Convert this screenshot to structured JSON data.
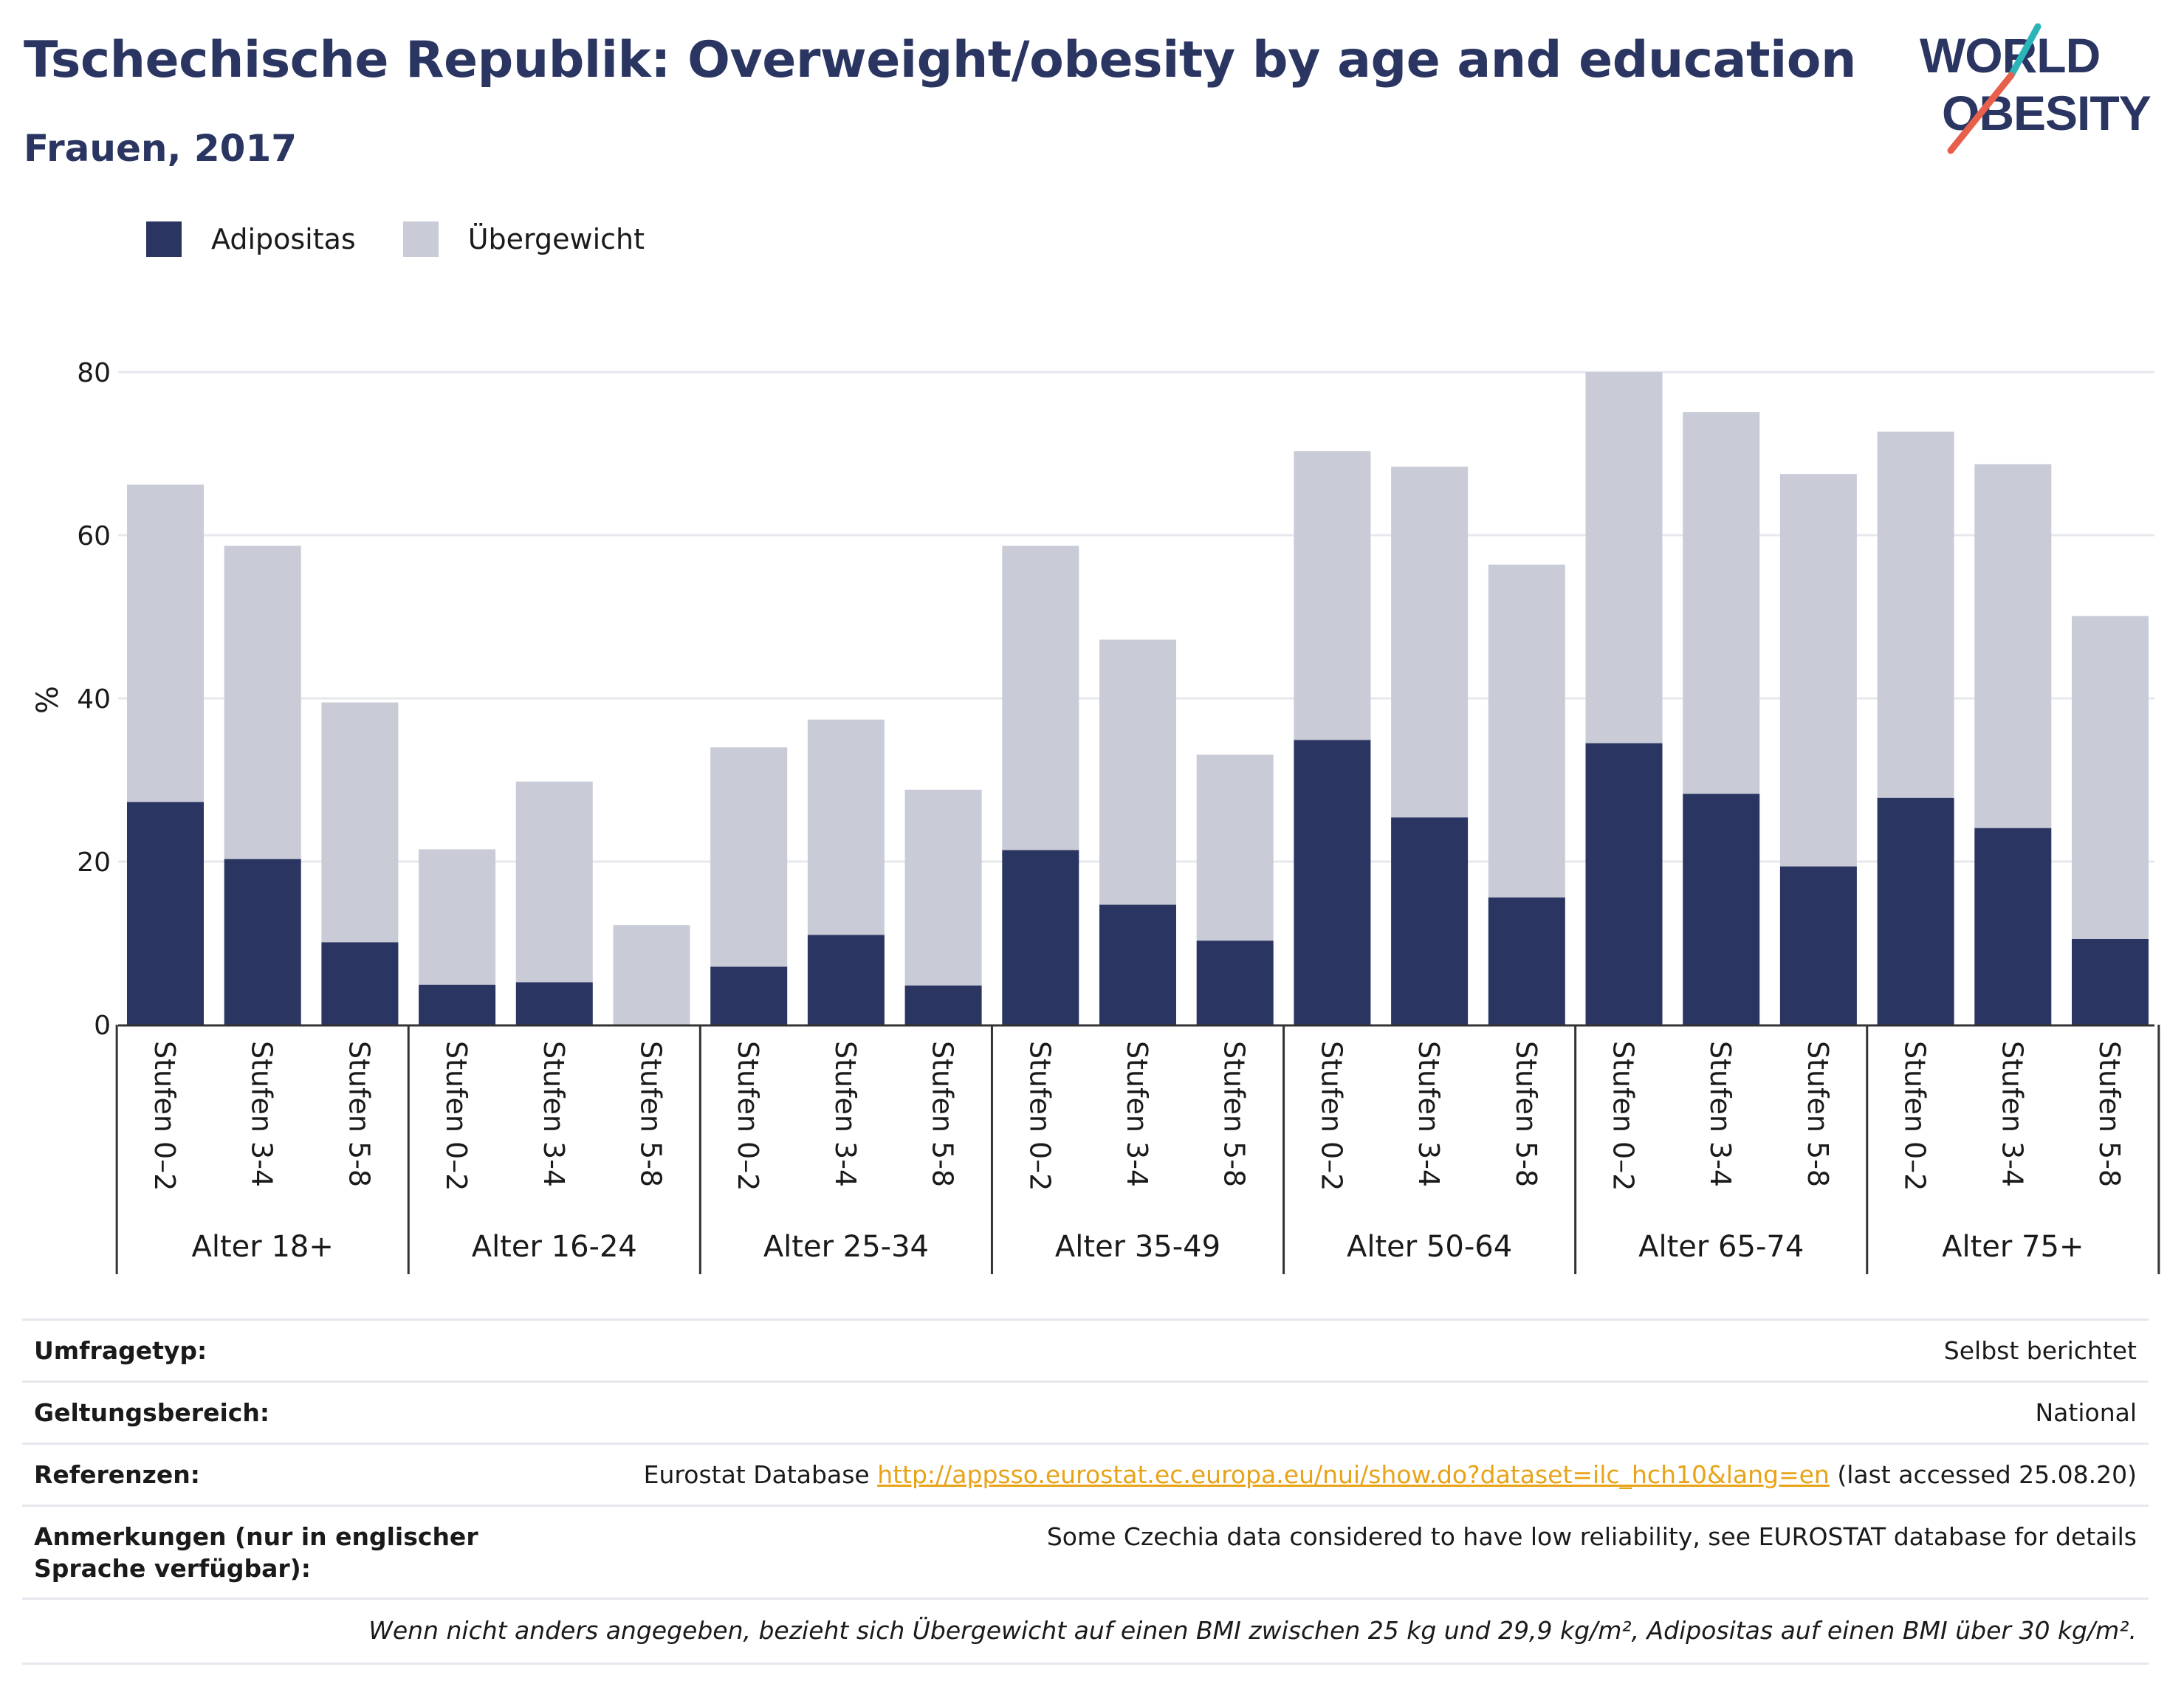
{
  "header": {
    "title": "Tschechische Republik: Overweight/obesity by age and education",
    "subtitle": "Frauen, 2017"
  },
  "logo": {
    "line1": "WORLD",
    "line2": "OBESITY"
  },
  "colors": {
    "obesity": "#2a3561",
    "overweight": "#c9cbd7",
    "title": "#2a3561",
    "link": "#e8a317",
    "logo_teal": "#2bb5b8",
    "logo_red": "#e8604c"
  },
  "legend": [
    {
      "label": "Adipositas",
      "color": "#2a3561"
    },
    {
      "label": "Übergewicht",
      "color": "#c9cbd7"
    }
  ],
  "chart_data": {
    "type": "bar",
    "stacked": true,
    "ylabel": "%",
    "ylim": [
      0,
      80
    ],
    "yticks": [
      0,
      20,
      40,
      60,
      80
    ],
    "grid": true,
    "legend_position": "top-left",
    "groups": [
      {
        "label": "Alter 18+",
        "categories": [
          "Stufen 0–2",
          "Stufen 3-4",
          "Stufen 5-8"
        ]
      },
      {
        "label": "Alter 16-24",
        "categories": [
          "Stufen 0–2",
          "Stufen 3-4",
          "Stufen 5-8"
        ]
      },
      {
        "label": "Alter 25-34",
        "categories": [
          "Stufen 0–2",
          "Stufen 3-4",
          "Stufen 5-8"
        ]
      },
      {
        "label": "Alter 35-49",
        "categories": [
          "Stufen 0–2",
          "Stufen 3-4",
          "Stufen 5-8"
        ]
      },
      {
        "label": "Alter 50-64",
        "categories": [
          "Stufen 0–2",
          "Stufen 3-4",
          "Stufen 5-8"
        ]
      },
      {
        "label": "Alter 65-74",
        "categories": [
          "Stufen 0–2",
          "Stufen 3-4",
          "Stufen 5-8"
        ]
      },
      {
        "label": "Alter 75+",
        "categories": [
          "Stufen 0–2",
          "Stufen 3-4",
          "Stufen 5-8"
        ]
      }
    ],
    "series": [
      {
        "name": "Adipositas",
        "values": [
          27.3,
          20.3,
          10.1,
          4.9,
          5.2,
          0,
          7.1,
          11.0,
          4.8,
          21.4,
          14.7,
          10.3,
          34.9,
          25.4,
          15.6,
          34.5,
          28.3,
          19.4,
          27.8,
          24.1,
          10.5
        ]
      },
      {
        "name": "Übergewicht",
        "values": [
          38.9,
          38.4,
          29.4,
          16.6,
          24.6,
          12.2,
          26.9,
          26.4,
          24.0,
          37.3,
          32.5,
          22.8,
          35.4,
          43.0,
          40.8,
          45.5,
          46.8,
          48.1,
          44.9,
          44.6,
          39.6
        ]
      }
    ]
  },
  "meta": {
    "rows": [
      {
        "label": "Umfragetyp:",
        "value": "Selbst berichtet"
      },
      {
        "label": "Geltungsbereich:",
        "value": "National"
      },
      {
        "label": "Referenzen:",
        "prefix": "Eurostat Database ",
        "link": "http://appsso.eurostat.ec.europa.eu/nui/show.do?dataset=ilc_hch10&lang=en",
        "suffix": " (last accessed 25.08.20)"
      },
      {
        "label": "Anmerkungen (nur in englischer Sprache verfügbar):",
        "value": "Some Czechia data considered to have low reliability, see EUROSTAT database for details"
      }
    ],
    "note": "Wenn nicht anders angegeben, bezieht sich Übergewicht auf einen BMI zwischen 25 kg und 29,9 kg/m², Adipositas auf einen BMI über 30 kg/m²."
  }
}
